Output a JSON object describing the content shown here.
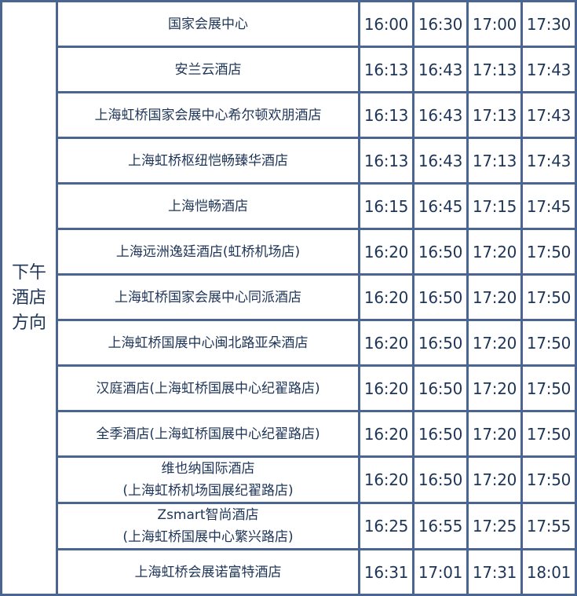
{
  "section_label_lines": [
    "下午",
    "酒店",
    "方向"
  ],
  "rows": [
    {
      "hotel": [
        "国家会展中心"
      ],
      "times": [
        "16:00",
        "16:30",
        "17:00",
        "17:30"
      ]
    },
    {
      "hotel": [
        "安兰云酒店"
      ],
      "times": [
        "16:13",
        "16:43",
        "17:13",
        "17:43"
      ]
    },
    {
      "hotel": [
        "上海虹桥国家会展中心希尔顿欢朋酒店"
      ],
      "times": [
        "16:13",
        "16:43",
        "17:13",
        "17:43"
      ]
    },
    {
      "hotel": [
        "上海虹桥枢纽恺畅臻华酒店"
      ],
      "times": [
        "16:13",
        "16:43",
        "17:13",
        "17:43"
      ]
    },
    {
      "hotel": [
        "上海恺畅酒店"
      ],
      "times": [
        "16:15",
        "16:45",
        "17:15",
        "17:45"
      ]
    },
    {
      "hotel": [
        "上海远洲逸廷酒店(虹桥机场店)"
      ],
      "times": [
        "16:20",
        "16:50",
        "17:20",
        "17:50"
      ]
    },
    {
      "hotel": [
        "上海虹桥国家会展中心同派酒店"
      ],
      "times": [
        "16:20",
        "16:50",
        "17:20",
        "17:50"
      ]
    },
    {
      "hotel": [
        "上海虹桥国展中心闽北路亚朵酒店"
      ],
      "times": [
        "16:20",
        "16:50",
        "17:20",
        "17:50"
      ]
    },
    {
      "hotel": [
        "汉庭酒店(上海虹桥国展中心纪翟路店)"
      ],
      "times": [
        "16:20",
        "16:50",
        "17:20",
        "17:50"
      ]
    },
    {
      "hotel": [
        "全季酒店(上海虹桥国展中心纪翟路店)"
      ],
      "times": [
        "16:20",
        "16:50",
        "17:20",
        "17:50"
      ]
    },
    {
      "hotel": [
        "维也纳国际酒店",
        "(上海虹桥机场国展纪翟路店)"
      ],
      "times": [
        "16:20",
        "16:50",
        "17:20",
        "17:50"
      ]
    },
    {
      "hotel": [
        "Zsmart智尚酒店",
        "(上海虹桥国展中心繁兴路店)"
      ],
      "times": [
        "16:25",
        "16:55",
        "17:25",
        "17:55"
      ]
    },
    {
      "hotel": [
        "上海虹桥会展诺富特酒店"
      ],
      "times": [
        "16:31",
        "17:01",
        "17:31",
        "18:01"
      ]
    }
  ],
  "colors": {
    "border": "#4a6591",
    "text": "#1e3557"
  }
}
